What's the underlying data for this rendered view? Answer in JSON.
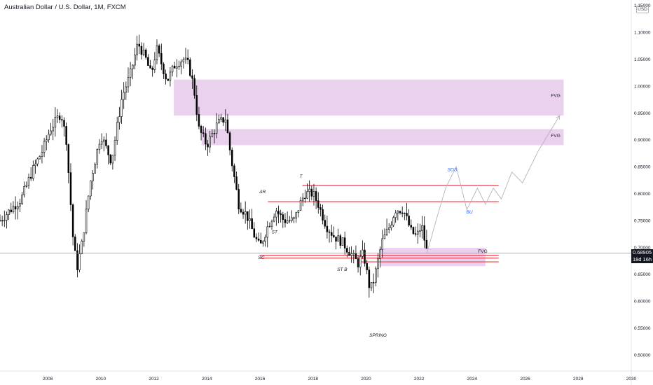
{
  "header": {
    "symbol_title": "Australian Dollar / U.S. Dollar, 1M, FXCM",
    "currency": "USD"
  },
  "price_tag": {
    "price": "0.68905",
    "countdown": "18d 16h"
  },
  "chart_data": {
    "type": "candlestick",
    "title": "Australian Dollar / U.S. Dollar, 1M, FXCM",
    "y_axis": {
      "ticks": [
        0.5,
        0.55,
        0.6,
        0.65,
        0.7,
        0.75,
        0.8,
        0.85,
        0.9,
        0.95,
        1.0,
        1.05,
        1.1,
        1.15
      ],
      "tick_labels": [
        "0.50000",
        "0.55000",
        "0.60000",
        "0.65000",
        "0.70000",
        "0.75000",
        "0.80000",
        "0.85000",
        "0.90000",
        "0.95000",
        "1.00000",
        "1.05000",
        "1.10000",
        "1.15000"
      ],
      "range": [
        0.47,
        1.16
      ],
      "position": "right"
    },
    "x_axis": {
      "ticks": [
        2008,
        2010,
        2012,
        2014,
        2016,
        2018,
        2020,
        2022,
        2024,
        2026,
        2028,
        2030
      ],
      "tick_labels": [
        "2008",
        "2010",
        "2012",
        "2014",
        "2016",
        "2018",
        "2020",
        "2022",
        "2024",
        "2026",
        "2028",
        "2030"
      ],
      "range": [
        2006.2,
        2030
      ]
    },
    "candle_color_up": "#ffffff",
    "candle_color_down": "#000000",
    "price_anchors": [
      [
        2006.2,
        0.75
      ],
      [
        2006.6,
        0.77
      ],
      [
        2007.0,
        0.79
      ],
      [
        2007.4,
        0.84
      ],
      [
        2007.8,
        0.88
      ],
      [
        2008.1,
        0.92
      ],
      [
        2008.5,
        0.95
      ],
      [
        2008.7,
        0.9
      ],
      [
        2008.95,
        0.72
      ],
      [
        2009.1,
        0.66
      ],
      [
        2009.3,
        0.71
      ],
      [
        2009.6,
        0.82
      ],
      [
        2010.0,
        0.91
      ],
      [
        2010.4,
        0.86
      ],
      [
        2010.8,
        0.98
      ],
      [
        2011.1,
        1.02
      ],
      [
        2011.4,
        1.08
      ],
      [
        2011.7,
        1.05
      ],
      [
        2011.9,
        1.02
      ],
      [
        2012.1,
        1.07
      ],
      [
        2012.5,
        1.01
      ],
      [
        2012.8,
        1.04
      ],
      [
        2013.1,
        1.05
      ],
      [
        2013.3,
        1.04
      ],
      [
        2013.5,
        1.0
      ],
      [
        2013.7,
        0.92
      ],
      [
        2014.0,
        0.89
      ],
      [
        2014.4,
        0.93
      ],
      [
        2014.7,
        0.94
      ],
      [
        2014.9,
        0.87
      ],
      [
        2015.2,
        0.78
      ],
      [
        2015.5,
        0.76
      ],
      [
        2015.8,
        0.72
      ],
      [
        2016.0,
        0.7
      ],
      [
        2016.3,
        0.74
      ],
      [
        2016.6,
        0.77
      ],
      [
        2016.9,
        0.75
      ],
      [
        2017.3,
        0.75
      ],
      [
        2017.5,
        0.78
      ],
      [
        2017.7,
        0.8
      ],
      [
        2018.0,
        0.8
      ],
      [
        2018.2,
        0.78
      ],
      [
        2018.5,
        0.74
      ],
      [
        2018.8,
        0.72
      ],
      [
        2019.1,
        0.71
      ],
      [
        2019.4,
        0.69
      ],
      [
        2019.7,
        0.67
      ],
      [
        2019.9,
        0.69
      ],
      [
        2020.15,
        0.62
      ],
      [
        2020.3,
        0.64
      ],
      [
        2020.6,
        0.71
      ],
      [
        2020.9,
        0.74
      ],
      [
        2021.1,
        0.77
      ],
      [
        2021.4,
        0.77
      ],
      [
        2021.7,
        0.73
      ],
      [
        2021.9,
        0.72
      ],
      [
        2022.1,
        0.74
      ],
      [
        2022.3,
        0.69
      ]
    ],
    "zones": [
      {
        "label": "FVG",
        "x0": 2012.75,
        "x1": 2027.45,
        "y0": 0.945,
        "y1": 1.012
      },
      {
        "label": "FVG",
        "x0": 2013.8,
        "x1": 2027.45,
        "y0": 0.89,
        "y1": 0.92
      },
      {
        "label": "FVG",
        "x0": 2020.55,
        "x1": 2024.5,
        "y0": 0.665,
        "y1": 0.699
      }
    ],
    "levels": [
      {
        "y": 0.815,
        "x0": 2017.6,
        "x1": 2025.0
      },
      {
        "y": 0.785,
        "x0": 2016.3,
        "x1": 2025.0
      },
      {
        "y": 0.685,
        "x0": 2016.0,
        "x1": 2025.0
      },
      {
        "y": 0.68,
        "x0": 2016.0,
        "x1": 2025.0
      },
      {
        "y": 0.673,
        "x0": 2019.8,
        "x1": 2025.0
      }
    ],
    "projection_path": [
      [
        2022.3,
        0.69
      ],
      [
        2022.7,
        0.76
      ],
      [
        2023.0,
        0.81
      ],
      [
        2023.4,
        0.85
      ],
      [
        2023.8,
        0.77
      ],
      [
        2024.2,
        0.81
      ],
      [
        2024.5,
        0.78
      ],
      [
        2024.8,
        0.81
      ],
      [
        2025.1,
        0.79
      ],
      [
        2025.5,
        0.84
      ],
      [
        2025.9,
        0.82
      ],
      [
        2026.5,
        0.88
      ],
      [
        2027.3,
        0.945
      ]
    ],
    "annotations": [
      {
        "text": "FVG",
        "x": 2027.15,
        "y": 0.98,
        "color": "#131722"
      },
      {
        "text": "FVG",
        "x": 2027.15,
        "y": 0.905,
        "color": "#131722"
      },
      {
        "text": "FVG",
        "x": 2024.4,
        "y": 0.69,
        "color": "#131722"
      },
      {
        "text": "SC",
        "x": 2016.05,
        "y": 0.678,
        "color": "#131722"
      },
      {
        "text": "ST",
        "x": 2016.55,
        "y": 0.726,
        "color": "#131722"
      },
      {
        "text": "AR",
        "x": 2016.1,
        "y": 0.801,
        "color": "#131722"
      },
      {
        "text": "T",
        "x": 2017.55,
        "y": 0.829,
        "color": "#131722"
      },
      {
        "text": "ST B",
        "x": 2019.1,
        "y": 0.656,
        "color": "#131722"
      },
      {
        "text": "SPRING",
        "x": 2020.45,
        "y": 0.534,
        "color": "#131722"
      },
      {
        "text": "SOS",
        "x": 2023.25,
        "y": 0.842,
        "color": "#2962ff"
      },
      {
        "text": "BU",
        "x": 2023.9,
        "y": 0.763,
        "color": "#2962ff"
      }
    ],
    "current_price": 0.68905,
    "current_price_label": "0.68905",
    "countdown_label": "18d 16h",
    "grid": false,
    "legend": "none"
  }
}
